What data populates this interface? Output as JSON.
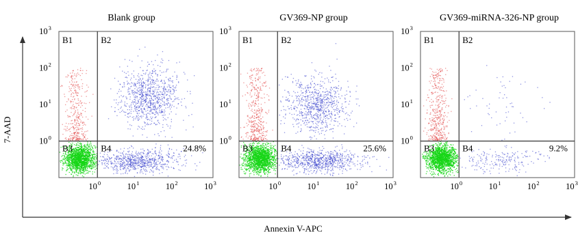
{
  "chart_data": [
    {
      "type": "scatter",
      "title": "Blank group",
      "x_scale": "log",
      "y_scale": "log",
      "xlim": [
        0.1,
        1000
      ],
      "ylim": [
        0.1,
        1000
      ],
      "x_ticks": [
        {
          "base": "10",
          "exp": "0"
        },
        {
          "base": "10",
          "exp": "1"
        },
        {
          "base": "10",
          "exp": "2"
        },
        {
          "base": "10",
          "exp": "3"
        }
      ],
      "y_ticks": [
        {
          "base": "10",
          "exp": "3"
        },
        {
          "base": "10",
          "exp": "2"
        },
        {
          "base": "10",
          "exp": "1"
        },
        {
          "base": "10",
          "exp": "0"
        }
      ],
      "quadrant_gates": {
        "x": 1,
        "y": 1
      },
      "quadrant_labels": [
        "B1",
        "B2",
        "B3",
        "B4"
      ],
      "annotations": [
        {
          "quadrant": "B4",
          "text": "24.8%"
        }
      ],
      "populations": [
        {
          "quadrant": "B1",
          "color": "#e03c3c"
        },
        {
          "quadrant": "B2",
          "color": "#2b34c8"
        },
        {
          "quadrant": "B3",
          "color": "#15d615"
        },
        {
          "quadrant": "B4",
          "color": "#2b34c8"
        }
      ]
    },
    {
      "type": "scatter",
      "title": "GV369-NP group",
      "x_scale": "log",
      "y_scale": "log",
      "xlim": [
        0.1,
        1000
      ],
      "ylim": [
        0.1,
        1000
      ],
      "x_ticks": [
        {
          "base": "10",
          "exp": "0"
        },
        {
          "base": "10",
          "exp": "1"
        },
        {
          "base": "10",
          "exp": "2"
        },
        {
          "base": "10",
          "exp": "3"
        }
      ],
      "y_ticks": [
        {
          "base": "10",
          "exp": "3"
        },
        {
          "base": "10",
          "exp": "2"
        },
        {
          "base": "10",
          "exp": "1"
        },
        {
          "base": "10",
          "exp": "0"
        }
      ],
      "quadrant_gates": {
        "x": 1,
        "y": 1
      },
      "quadrant_labels": [
        "B1",
        "B2",
        "B3",
        "B4"
      ],
      "annotations": [
        {
          "quadrant": "B4",
          "text": "25.6%"
        }
      ],
      "populations": [
        {
          "quadrant": "B1",
          "color": "#e03c3c"
        },
        {
          "quadrant": "B2",
          "color": "#2b34c8"
        },
        {
          "quadrant": "B3",
          "color": "#15d615"
        },
        {
          "quadrant": "B4",
          "color": "#2b34c8"
        }
      ]
    },
    {
      "type": "scatter",
      "title": "GV369-miRNA-326-NP group",
      "x_scale": "log",
      "y_scale": "log",
      "xlim": [
        0.1,
        1000
      ],
      "ylim": [
        0.1,
        1000
      ],
      "x_ticks": [
        {
          "base": "10",
          "exp": "0"
        },
        {
          "base": "10",
          "exp": "1"
        },
        {
          "base": "10",
          "exp": "2"
        },
        {
          "base": "10",
          "exp": "3"
        }
      ],
      "y_ticks": [
        {
          "base": "10",
          "exp": "3"
        },
        {
          "base": "10",
          "exp": "2"
        },
        {
          "base": "10",
          "exp": "1"
        },
        {
          "base": "10",
          "exp": "0"
        }
      ],
      "quadrant_gates": {
        "x": 1,
        "y": 1
      },
      "quadrant_labels": [
        "B1",
        "B2",
        "B3",
        "B4"
      ],
      "annotations": [
        {
          "quadrant": "B4",
          "text": "9.2%"
        }
      ],
      "populations": [
        {
          "quadrant": "B1",
          "color": "#e03c3c"
        },
        {
          "quadrant": "B2",
          "color": "#2b34c8"
        },
        {
          "quadrant": "B3",
          "color": "#15d615"
        },
        {
          "quadrant": "B4",
          "color": "#2b34c8"
        }
      ]
    }
  ],
  "axes": {
    "xlabel": "Annexin V-APC",
    "ylabel": "7-AAD"
  }
}
